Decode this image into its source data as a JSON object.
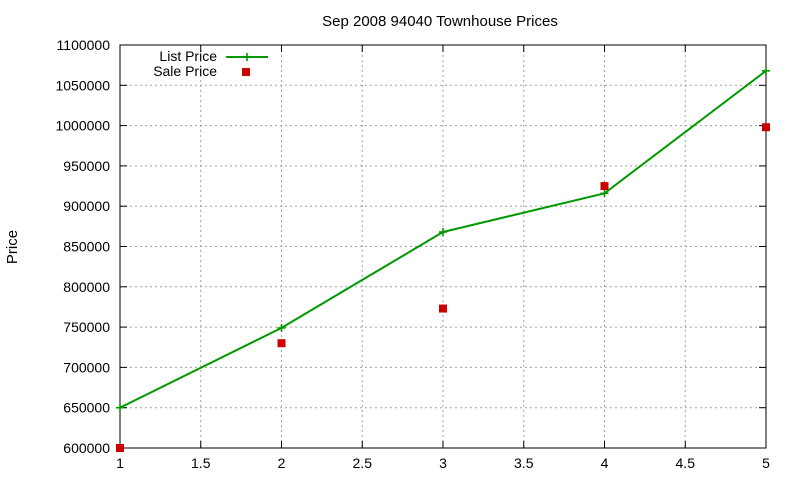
{
  "chart_data": {
    "type": "line",
    "title": "Sep 2008 94040 Townhouse Prices",
    "xlabel": "",
    "ylabel": "Price",
    "xlim": [
      1,
      5
    ],
    "ylim": [
      600000,
      1100000
    ],
    "x_ticks": [
      "1",
      "1.5",
      "2",
      "2.5",
      "3",
      "3.5",
      "4",
      "4.5",
      "5"
    ],
    "y_ticks": [
      "600000",
      "650000",
      "700000",
      "750000",
      "800000",
      "850000",
      "900000",
      "950000",
      "1000000",
      "1050000",
      "1100000"
    ],
    "grid": true,
    "legend_position": "top-left",
    "series": [
      {
        "name": "List Price",
        "style": "linespoints",
        "marker": "plus",
        "color": "#009900",
        "x": [
          1,
          2,
          3,
          4,
          5
        ],
        "y": [
          650000,
          749000,
          868000,
          916000,
          1068000
        ]
      },
      {
        "name": "Sale Price",
        "style": "points",
        "marker": "square",
        "color": "#cc0000",
        "x": [
          1,
          2,
          3,
          4,
          5
        ],
        "y": [
          600000,
          730000,
          773000,
          925000,
          998000
        ]
      }
    ]
  }
}
